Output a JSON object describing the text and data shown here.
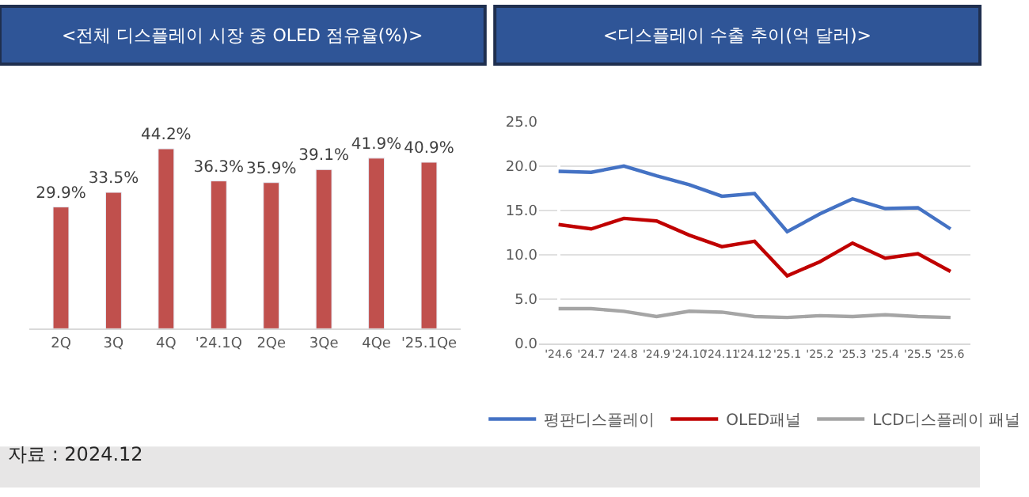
{
  "chart_data": [
    {
      "type": "bar",
      "title": "<전체 디스플레이 시장 중 OLED 점유율(%)>",
      "categories": [
        "2Q",
        "3Q",
        "4Q",
        "'24.1Q",
        "2Qe",
        "3Qe",
        "4Qe",
        "'25.1Qe"
      ],
      "values": [
        29.9,
        33.5,
        44.2,
        36.3,
        35.9,
        39.1,
        41.9,
        40.9
      ],
      "value_labels": [
        "29.9%",
        "33.5%",
        "44.2%",
        "36.3%",
        "35.9%",
        "39.1%",
        "41.9%",
        "40.9%"
      ],
      "color": "#c0504d",
      "grid": false,
      "legend": false,
      "tick_labels": "x",
      "annotations": [
        "자료 : 2024.12"
      ]
    },
    {
      "type": "line",
      "title": "<디스플레이 수출 추이(억 달러)>",
      "categories": [
        "'24.6",
        "'24.7",
        "'24.8",
        "'24.9",
        "'24.10",
        "'24.11",
        "'24.12",
        "'25.1",
        "'25.2",
        "'25.3",
        "'25.4",
        "'25.5",
        "'25.6"
      ],
      "series": [
        {
          "name": "평판디스플레이",
          "color": "#4472c4",
          "values": [
            19.4,
            19.3,
            20.0,
            18.9,
            17.9,
            16.6,
            16.9,
            12.6,
            14.6,
            16.3,
            15.2,
            15.3,
            12.9
          ]
        },
        {
          "name": "OLED패널",
          "color": "#c00000",
          "values": [
            13.4,
            12.9,
            14.1,
            13.8,
            12.2,
            10.9,
            11.5,
            7.6,
            9.2,
            11.3,
            9.6,
            10.1,
            8.1
          ]
        },
        {
          "name": "LCD디스플레이 패널",
          "color": "#a5a5a5",
          "values": [
            3.9,
            3.9,
            3.6,
            3.0,
            3.6,
            3.5,
            3.0,
            2.9,
            3.1,
            3.0,
            3.2,
            3.0,
            2.9
          ]
        }
      ],
      "ylim": [
        0,
        25
      ],
      "yticks": [
        {
          "value": 0,
          "label": "0.0"
        },
        {
          "value": 5,
          "label": "5.0"
        },
        {
          "value": 10,
          "label": "10.0"
        },
        {
          "value": 15,
          "label": "15.0"
        },
        {
          "value": 20,
          "label": "20.0"
        },
        {
          "value": 25,
          "label": "25.0"
        }
      ],
      "grid": "y",
      "legend": "bottom",
      "marker": "none",
      "line_style": "solid"
    }
  ]
}
